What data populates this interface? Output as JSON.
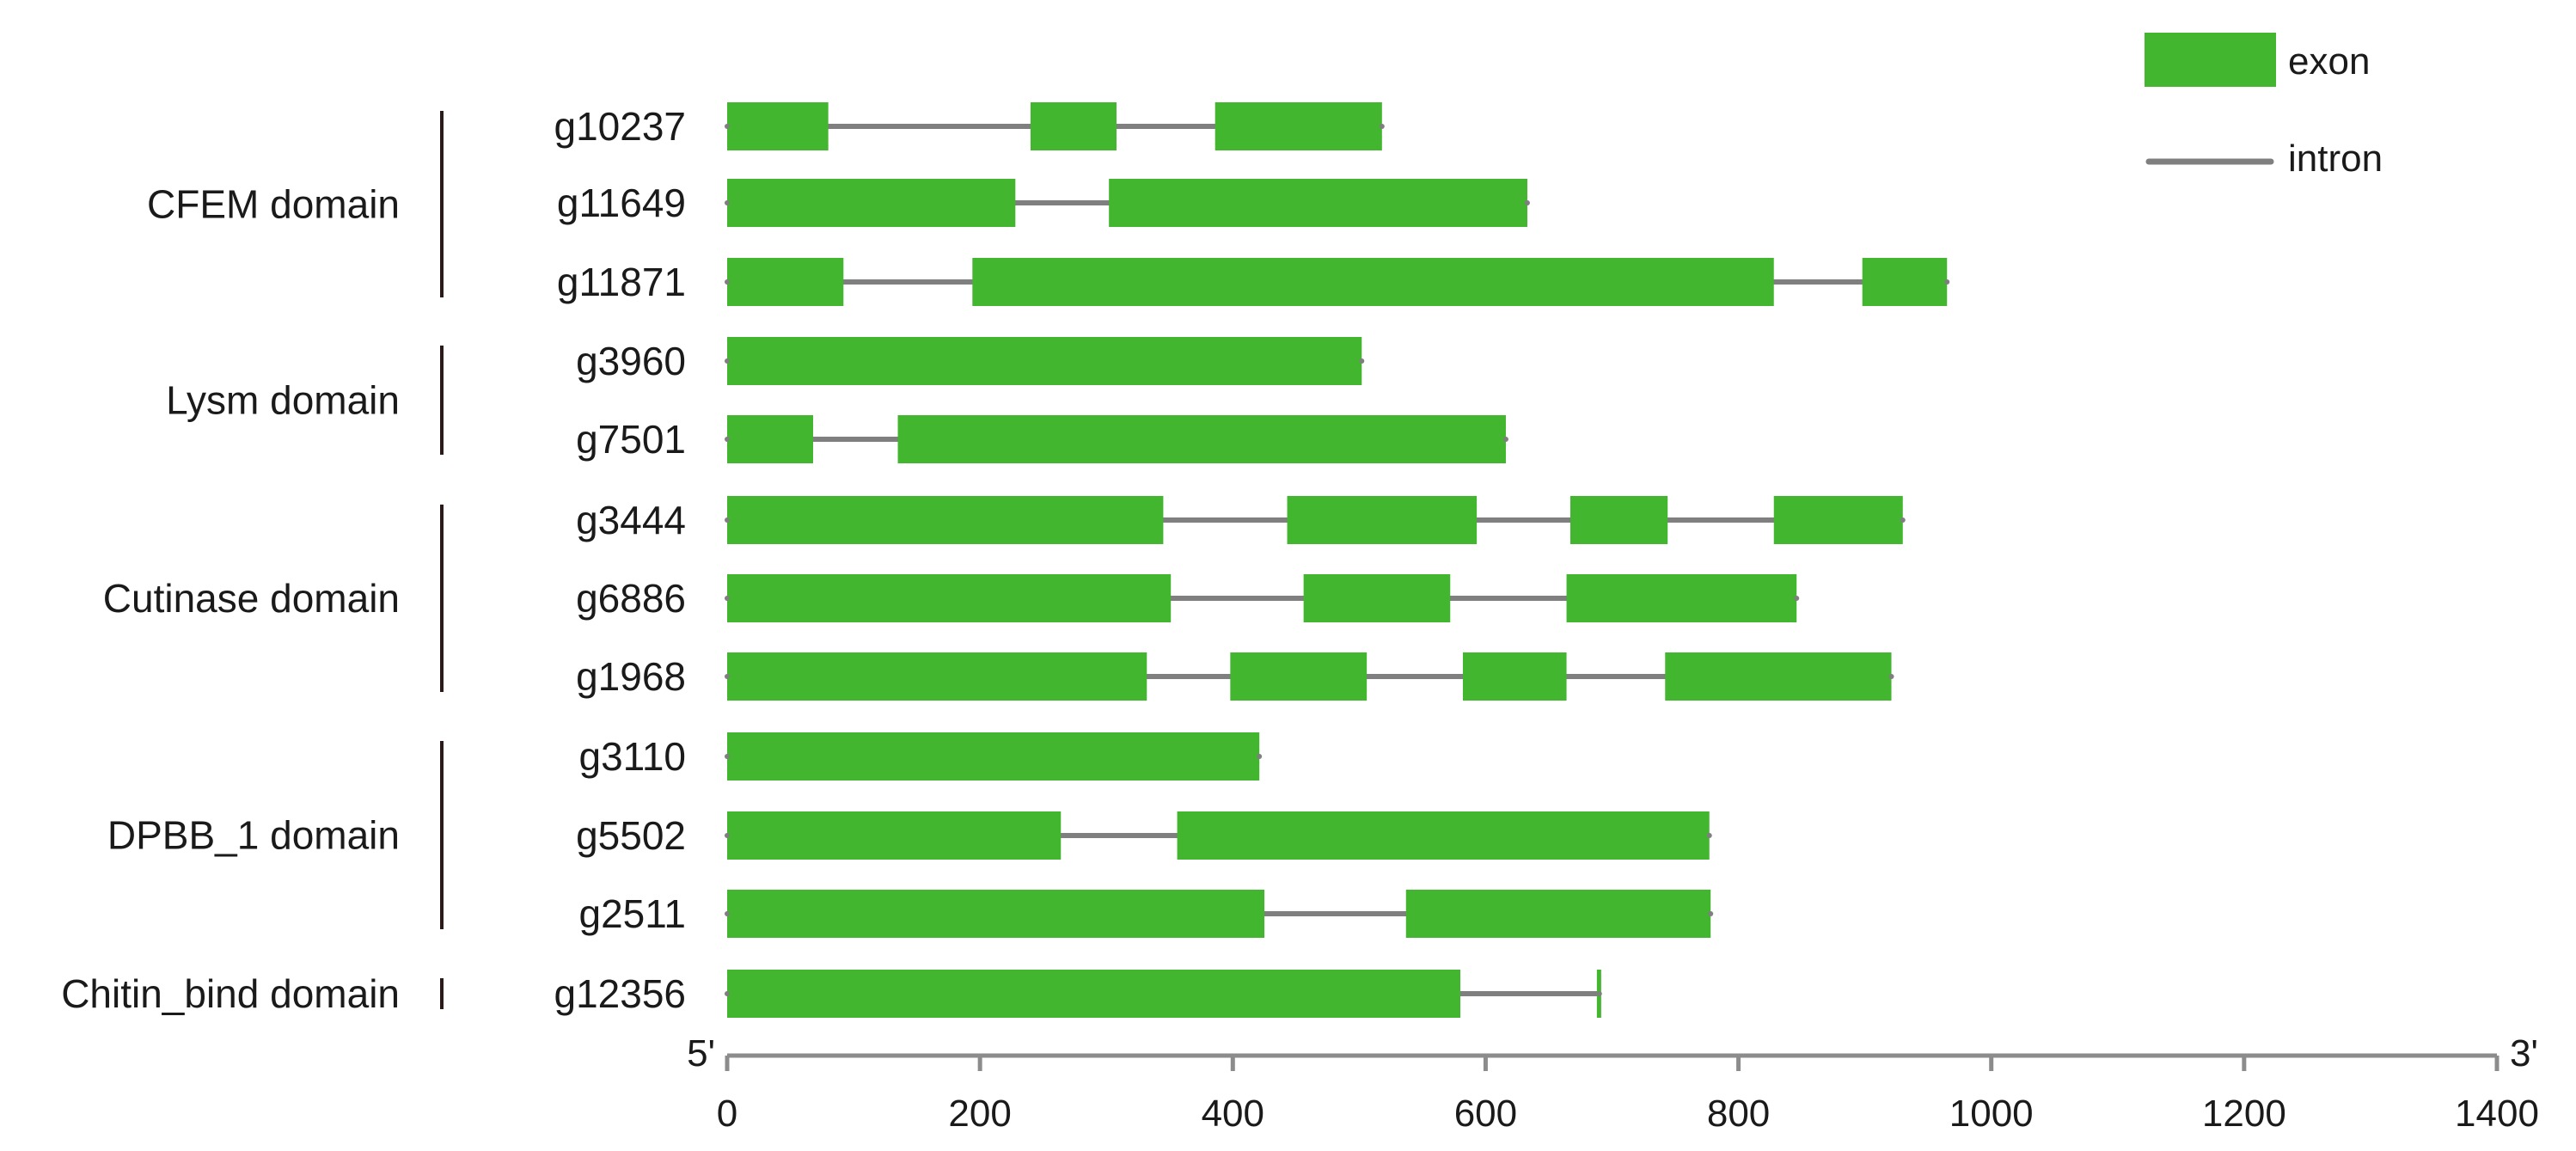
{
  "chart_data": {
    "type": "gene-structure",
    "legend": [
      {
        "label": "exon",
        "color": "#43b62f"
      },
      {
        "label": "intron",
        "color": "#7f7f7f"
      }
    ],
    "x_axis": {
      "min": 0,
      "max": 1400,
      "ticks": [
        0,
        200,
        400,
        600,
        800,
        1000,
        1200,
        1400
      ],
      "start_label": "5'",
      "end_label": "3'"
    },
    "colors": {
      "exon": "#43b62f",
      "intron": "#7f7f7f",
      "axis": "#8c8c8c",
      "bracket": "#2b1a1a"
    },
    "groups": [
      {
        "name": "CFEM domain",
        "genes": [
          {
            "id": "g10237",
            "length": 518,
            "exons": [
              [
                0,
                80
              ],
              [
                240,
                308
              ],
              [
                386,
                518
              ]
            ]
          },
          {
            "id": "g11649",
            "length": 633,
            "exons": [
              [
                0,
                228
              ],
              [
                302,
                633
              ]
            ]
          },
          {
            "id": "g11871",
            "length": 965,
            "exons": [
              [
                0,
                92
              ],
              [
                194,
                828
              ],
              [
                898,
                965
              ]
            ]
          }
        ]
      },
      {
        "name": "Lysm domain",
        "genes": [
          {
            "id": "g3960",
            "length": 502,
            "exons": [
              [
                0,
                502
              ]
            ]
          },
          {
            "id": "g7501",
            "length": 616,
            "exons": [
              [
                0,
                68
              ],
              [
                135,
                616
              ]
            ]
          }
        ]
      },
      {
        "name": "Cutinase domain",
        "genes": [
          {
            "id": "g3444",
            "length": 930,
            "exons": [
              [
                0,
                345
              ],
              [
                443,
                593
              ],
              [
                667,
                744
              ],
              [
                828,
                930
              ]
            ]
          },
          {
            "id": "g6886",
            "length": 846,
            "exons": [
              [
                0,
                351
              ],
              [
                456,
                572
              ],
              [
                664,
                846
              ]
            ]
          },
          {
            "id": "g1968",
            "length": 921,
            "exons": [
              [
                0,
                332
              ],
              [
                398,
                506
              ],
              [
                582,
                664
              ],
              [
                742,
                921
              ]
            ]
          }
        ]
      },
      {
        "name": "DPBB_1 domain",
        "genes": [
          {
            "id": "g3110",
            "length": 421,
            "exons": [
              [
                0,
                421
              ]
            ]
          },
          {
            "id": "g5502",
            "length": 777,
            "exons": [
              [
                0,
                264
              ],
              [
                356,
                777
              ]
            ]
          },
          {
            "id": "g2511",
            "length": 778,
            "exons": [
              [
                0,
                425
              ],
              [
                537,
                778
              ]
            ]
          }
        ]
      },
      {
        "name": "Chitin_bind domain",
        "genes": [
          {
            "id": "g12356",
            "length": 690,
            "exons": [
              [
                0,
                580
              ],
              [
                688,
                690
              ]
            ]
          }
        ]
      }
    ]
  }
}
